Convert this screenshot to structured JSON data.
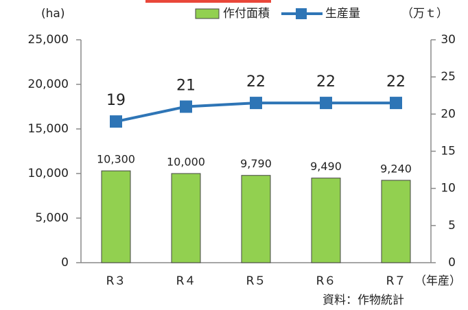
{
  "chart_data": {
    "type": "combo",
    "categories": [
      "R３",
      "R４",
      "R５",
      "R６",
      "R７"
    ],
    "x_label": "（年産）",
    "y_label": "(ha)",
    "y2_label": "（万ｔ）",
    "source": "資料：作物統計",
    "series": [
      {
        "name": "作付面積",
        "type": "bar",
        "color": "#92d050",
        "axis": "y",
        "values": [
          10300,
          10000,
          9790,
          9490,
          9240
        ],
        "value_labels": [
          "10,300",
          "10,000",
          "9,790",
          "9,490",
          "9,240"
        ]
      },
      {
        "name": "生産量",
        "type": "line",
        "color": "#2e75b6",
        "axis": "y2",
        "values": [
          19,
          21,
          21.5,
          21.5,
          21.5
        ],
        "value_labels": [
          "19",
          "21",
          "22",
          "22",
          "22"
        ]
      }
    ],
    "ylim": [
      0,
      25000
    ],
    "yticks": [
      0,
      {
        "value": 5000,
        "label": "5,000"
      },
      {
        "value": 10000,
        "label": "10,000"
      },
      {
        "value": 15000,
        "label": "15,000"
      },
      {
        "value": 20000,
        "label": "20,000"
      },
      {
        "value": 25000,
        "label": "25,000"
      }
    ],
    "y2lim": [
      0,
      30
    ],
    "y2ticks": [
      0,
      5,
      10,
      15,
      20,
      25,
      30
    ],
    "legend": "top"
  }
}
